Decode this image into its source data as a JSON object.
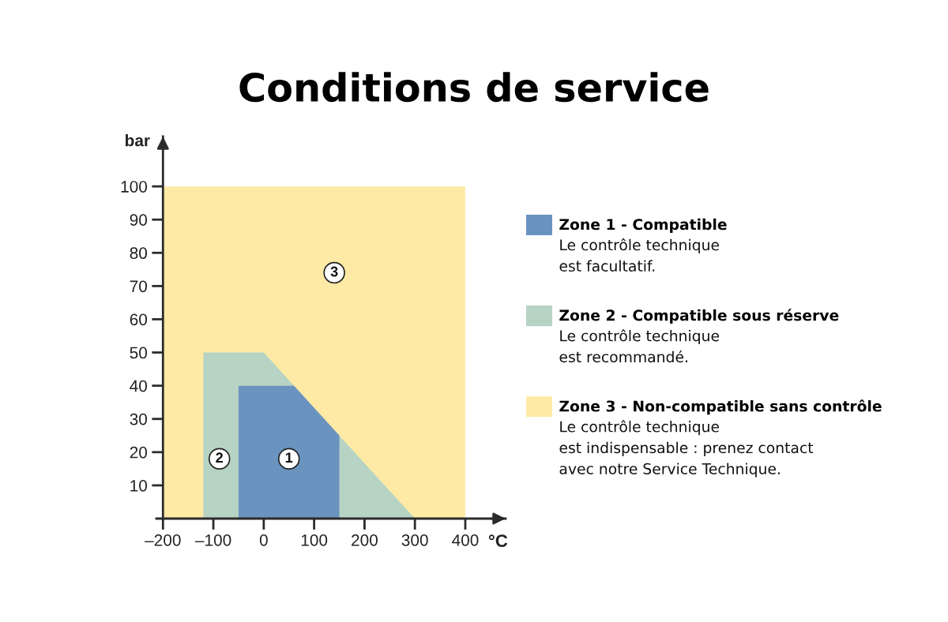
{
  "chart_data": {
    "type": "area",
    "title": "Conditions de service",
    "xlabel": "°C",
    "ylabel": "bar",
    "series": [
      {
        "name": "Zone 1 - Compatible",
        "color": "#6b93bf",
        "x": [
          -50,
          60,
          150
        ],
        "values": [
          40,
          40,
          25
        ]
      },
      {
        "name": "Zone 2 - Compatible sous réserve",
        "color": "#b7d3c3",
        "x": [
          -120,
          0,
          300
        ],
        "values": [
          50,
          50,
          0
        ]
      },
      {
        "name": "Zone 3 - Non-compatible sans contrôle",
        "color": "#feeaa5",
        "x": [
          -200,
          400
        ],
        "values": [
          100,
          100
        ]
      }
    ],
    "xlim": [
      -213,
      480
    ],
    "ylim": [
      0,
      115
    ],
    "xticks": [
      {
        "value": -200,
        "label": "–200"
      },
      {
        "value": -100,
        "label": "–100"
      },
      0,
      100,
      200,
      300,
      400
    ],
    "yticks": [
      10,
      20,
      30,
      40,
      50,
      60,
      70,
      80,
      90,
      100
    ],
    "legend": "right",
    "annotations": [
      "Le contrôle technique\nest facultatif.",
      "Le contrôle technique\nest recommandé.",
      "Le contrôle technique\nest indispensable : prenez contact\navec notre Service Technique.",
      {
        "text": "1",
        "x": 50,
        "y": 18
      },
      {
        "text": "2",
        "x": -88,
        "y": 18
      },
      {
        "text": "3",
        "x": 140,
        "y": 74
      }
    ]
  }
}
